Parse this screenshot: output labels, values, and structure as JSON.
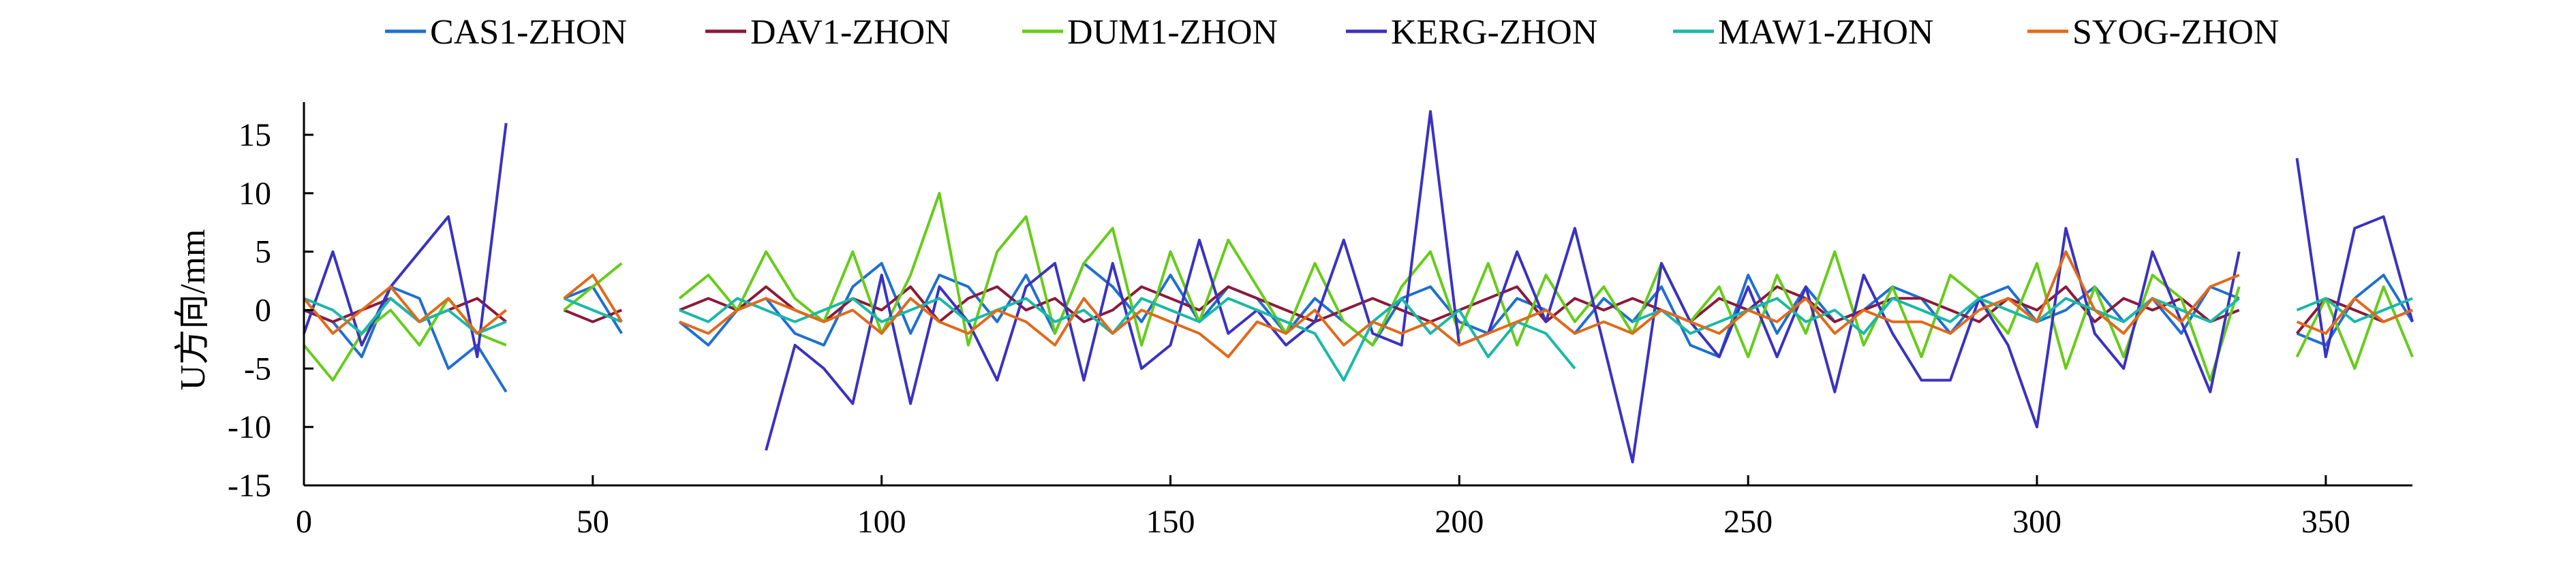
{
  "chart_data": {
    "type": "line",
    "title": "",
    "xlabel": "",
    "ylabel": "U方向/mm",
    "xlim": [
      0,
      365
    ],
    "ylim": [
      -15,
      18
    ],
    "xticks": [
      0,
      50,
      100,
      150,
      200,
      250,
      300,
      350
    ],
    "yticks": [
      -15,
      -10,
      -5,
      0,
      5,
      10,
      15
    ],
    "grid": false,
    "legend_position": "top",
    "x": [
      0,
      5,
      10,
      15,
      20,
      25,
      30,
      35,
      40,
      45,
      50,
      55,
      60,
      65,
      70,
      75,
      80,
      85,
      90,
      95,
      100,
      105,
      110,
      115,
      120,
      125,
      130,
      135,
      140,
      145,
      150,
      155,
      160,
      165,
      170,
      175,
      180,
      185,
      190,
      195,
      200,
      205,
      210,
      215,
      220,
      225,
      230,
      235,
      240,
      245,
      250,
      255,
      260,
      265,
      270,
      275,
      280,
      285,
      290,
      295,
      300,
      305,
      310,
      315,
      320,
      325,
      330,
      335,
      340,
      345,
      350,
      355,
      360,
      365
    ],
    "series": [
      {
        "name": "CAS1-ZHON",
        "color": "#1f6fd0",
        "values": [
          0,
          -1,
          -4,
          2,
          1,
          -5,
          -3,
          -7,
          null,
          1,
          2,
          -2,
          null,
          -1,
          -3,
          0,
          1,
          -2,
          -3,
          2,
          4,
          -2,
          3,
          2,
          -1,
          3,
          -2,
          4,
          2,
          -1,
          3,
          -1,
          2,
          1,
          -2,
          1,
          -1,
          -3,
          1,
          2,
          -1,
          -2,
          1,
          0,
          -2,
          1,
          -1,
          2,
          -3,
          -4,
          3,
          -2,
          2,
          -1,
          0,
          2,
          1,
          -2,
          1,
          2,
          -1,
          0,
          2,
          -1,
          1,
          -2,
          2,
          1,
          null,
          -2,
          -3,
          1,
          3,
          -1
        ]
      },
      {
        "name": "DAV1-ZHON",
        "color": "#8b1a3a",
        "values": [
          0,
          -1,
          0,
          1,
          -1,
          0,
          1,
          -1,
          null,
          0,
          -1,
          0,
          null,
          0,
          1,
          0,
          2,
          0,
          -1,
          1,
          0,
          2,
          -1,
          1,
          2,
          0,
          1,
          -1,
          0,
          2,
          1,
          0,
          2,
          1,
          0,
          -1,
          0,
          1,
          0,
          -1,
          0,
          1,
          2,
          -1,
          1,
          0,
          1,
          0,
          -1,
          1,
          0,
          2,
          1,
          -1,
          0,
          1,
          1,
          0,
          -1,
          1,
          0,
          2,
          -1,
          1,
          0,
          1,
          -1,
          0,
          null,
          -2,
          1,
          0,
          -1,
          0
        ]
      },
      {
        "name": "DUM1-ZHON",
        "color": "#66cc1a",
        "values": [
          -3,
          -6,
          -2,
          0,
          -3,
          1,
          -2,
          -3,
          null,
          0,
          2,
          4,
          null,
          1,
          3,
          0,
          5,
          1,
          -1,
          5,
          -2,
          3,
          10,
          -3,
          5,
          8,
          -2,
          4,
          7,
          -3,
          5,
          -1,
          6,
          2,
          -2,
          4,
          -1,
          -3,
          2,
          5,
          -2,
          4,
          -3,
          3,
          -1,
          2,
          -2,
          4,
          -1,
          2,
          -4,
          3,
          -2,
          5,
          -3,
          2,
          -4,
          3,
          1,
          -2,
          4,
          -5,
          2,
          -4,
          3,
          1,
          -6,
          2,
          null,
          -4,
          1,
          -5,
          2,
          -4
        ]
      },
      {
        "name": "KERG-ZHON",
        "color": "#3a32c0",
        "values": [
          -2,
          5,
          -3,
          2,
          5,
          8,
          -4,
          16,
          null,
          null,
          null,
          null,
          null,
          null,
          null,
          null,
          -12,
          -3,
          -5,
          -8,
          3,
          -8,
          2,
          -1,
          -6,
          2,
          4,
          -6,
          4,
          -5,
          -3,
          6,
          -2,
          0,
          -3,
          -1,
          6,
          -2,
          -3,
          17,
          -3,
          -2,
          5,
          -1,
          7,
          -3,
          -13,
          4,
          -1,
          -4,
          2,
          -4,
          2,
          -7,
          3,
          -2,
          -6,
          -6,
          1,
          -3,
          -10,
          7,
          -2,
          -5,
          5,
          -1,
          -7,
          5,
          null,
          13,
          -4,
          7,
          8,
          -1
        ]
      },
      {
        "name": "MAW1-ZHON",
        "color": "#1ab8a8",
        "values": [
          1,
          0,
          -2,
          1,
          -1,
          0,
          -2,
          -1,
          null,
          1,
          0,
          -1,
          null,
          0,
          -1,
          1,
          0,
          -1,
          0,
          1,
          -1,
          0,
          1,
          -1,
          0,
          1,
          -1,
          0,
          -2,
          1,
          0,
          -1,
          1,
          0,
          -1,
          -2,
          -6,
          -1,
          1,
          -2,
          0,
          -4,
          -1,
          -2,
          -5,
          null,
          -1,
          0,
          -2,
          -1,
          0,
          1,
          -1,
          0,
          -2,
          1,
          0,
          -1,
          1,
          0,
          -1,
          1,
          0,
          -1,
          1,
          0,
          -1,
          1,
          null,
          0,
          1,
          -1,
          0,
          1
        ]
      },
      {
        "name": "SYOG-ZHON",
        "color": "#e06a1a",
        "values": [
          1,
          -2,
          0,
          2,
          -1,
          1,
          -2,
          0,
          null,
          1,
          3,
          -1,
          null,
          -1,
          -2,
          0,
          1,
          0,
          -1,
          0,
          -2,
          1,
          -1,
          -2,
          0,
          -1,
          -3,
          1,
          -2,
          0,
          -1,
          -2,
          -4,
          -1,
          -2,
          0,
          -3,
          -1,
          -2,
          -1,
          -3,
          -2,
          -1,
          0,
          -2,
          -1,
          -2,
          0,
          -1,
          -2,
          0,
          -1,
          1,
          -2,
          0,
          -1,
          -1,
          -2,
          0,
          1,
          -1,
          5,
          0,
          -2,
          1,
          -1,
          2,
          3,
          null,
          -1,
          -2,
          1,
          -1,
          0
        ]
      }
    ]
  }
}
